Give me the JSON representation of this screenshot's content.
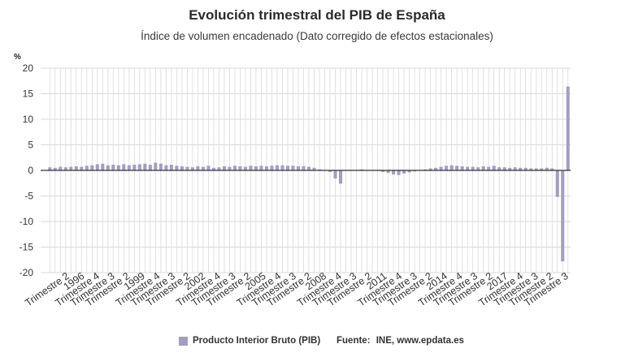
{
  "title": "Evolución trimestral del PIB de España",
  "subtitle": "Índice de volumen encadenado (Dato corregido de efectos estacionales)",
  "legend_label": "Producto Interior Bruto (PIB)",
  "source_label": "Fuente:",
  "source_value": "INE, www.epdata.es",
  "colors": {
    "bar": "#a49bc7",
    "grid": "#d9d9d9",
    "zero": "#333333"
  },
  "chart_data": {
    "type": "bar",
    "title": "Evolución trimestral del PIB de España",
    "subtitle": "Índice de volumen encadenado (Dato corregido de efectos estacionales)",
    "ylabel": "%",
    "ylim": [
      -20,
      20
    ],
    "yticks": [
      20,
      15,
      10,
      5,
      0,
      -5,
      -10,
      -15,
      -20
    ],
    "grid": true,
    "legend_position": "bottom",
    "tick_labels": [
      "Trimestre 2",
      "1996",
      "Trimestre 4",
      "Trimestre 3",
      "Trimestre 2",
      "1999",
      "Trimestre 4",
      "Trimestre 3",
      "Trimestre 2",
      "2002",
      "Trimestre 4",
      "Trimestre 3",
      "Trimestre 2",
      "2005",
      "Trimestre 4",
      "Trimestre 3",
      "Trimestre 2",
      "2008",
      "Trimestre 4",
      "Trimestre 3",
      "Trimestre 2",
      "2011",
      "Trimestre 4",
      "Trimestre 3",
      "Trimestre 2",
      "2014",
      "Trimestre 4",
      "Trimestre 3",
      "Trimestre 2",
      "2017",
      "Trimestre 4",
      "Trimestre 3",
      "Trimestre 2",
      "Trimestre 3"
    ],
    "series": [
      {
        "name": "Producto Interior Bruto (PIB)",
        "values": [
          0.6,
          0.5,
          0.7,
          0.6,
          0.7,
          0.8,
          0.7,
          0.9,
          1.0,
          1.2,
          1.3,
          1.0,
          1.1,
          1.0,
          1.2,
          1.0,
          1.1,
          1.2,
          1.3,
          1.1,
          1.5,
          1.3,
          1.0,
          1.1,
          0.9,
          0.8,
          0.7,
          0.6,
          0.8,
          0.7,
          0.9,
          0.5,
          0.6,
          0.8,
          0.7,
          0.9,
          0.8,
          0.7,
          0.9,
          0.8,
          0.9,
          0.8,
          0.9,
          1.0,
          1.0,
          0.9,
          0.9,
          0.8,
          0.8,
          0.7,
          0.5,
          0.2,
          -0.1,
          -0.3,
          -1.6,
          -2.6,
          -0.1,
          0.0,
          0.1,
          0.2,
          0.0,
          0.1,
          -0.1,
          -0.3,
          -0.5,
          -0.8,
          -0.9,
          -0.6,
          -0.4,
          -0.2,
          0.1,
          0.2,
          0.4,
          0.5,
          0.7,
          0.9,
          1.0,
          0.9,
          0.8,
          0.7,
          0.7,
          0.6,
          0.8,
          0.7,
          0.9,
          0.6,
          0.6,
          0.5,
          0.6,
          0.5,
          0.5,
          0.4,
          0.4,
          0.4,
          0.5,
          0.4,
          -5.2,
          -17.8,
          16.4
        ]
      }
    ]
  }
}
